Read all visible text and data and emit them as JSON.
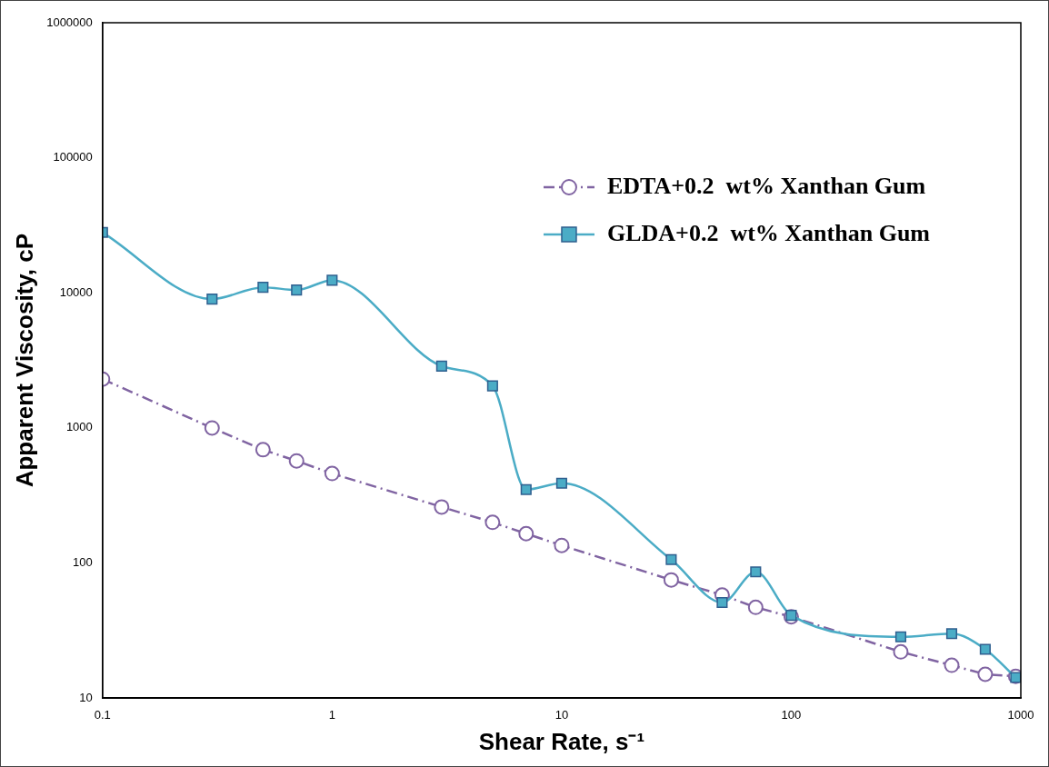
{
  "chart_data": {
    "type": "line",
    "xlabel": "Shear Rate, s⁻¹",
    "ylabel": "Apparent Viscosity, cP",
    "log": "xy",
    "grid": false,
    "legend": "top right",
    "xlim": [
      0.1,
      1000
    ],
    "xticks": [
      0.1,
      1,
      10,
      100,
      1000
    ],
    "ylim": [
      10,
      1000000
    ],
    "yticks": [
      10,
      100,
      1000,
      10000,
      100000,
      1000000
    ],
    "series": [
      {
        "name": "EDTA+0.2  wt% Xanthan Gum",
        "color": "#8064a2",
        "marker": "circle",
        "line_style": "dashdot",
        "x": [
          0.1,
          0.3,
          0.5,
          0.7,
          1,
          3,
          5,
          7,
          10,
          30,
          50,
          70,
          100,
          300,
          500,
          700,
          950
        ],
        "values": [
          2300,
          1000,
          690,
          570,
          460,
          260,
          200,
          165,
          135,
          75,
          58,
          47,
          40,
          22,
          17.5,
          15,
          14.5
        ]
      },
      {
        "name": "GLDA+0.2  wt% Xanthan Gum",
        "color": "#4bacc6",
        "marker": "square",
        "line_style": "solid",
        "x": [
          0.1,
          0.3,
          0.5,
          0.7,
          1,
          3,
          5,
          7,
          10,
          30,
          50,
          70,
          100,
          300,
          500,
          700,
          950
        ],
        "values": [
          28000,
          9000,
          11000,
          10500,
          12400,
          2870,
          2050,
          350,
          390,
          106,
          51,
          86,
          41,
          28.4,
          30,
          23,
          14.2
        ]
      }
    ]
  }
}
